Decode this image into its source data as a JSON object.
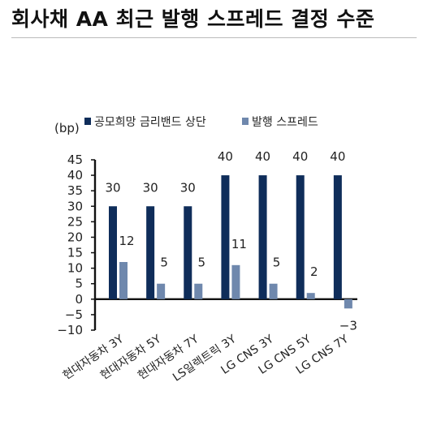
{
  "page": {
    "title": "회사채 AA 최근 발행 스프레드 결정 수준"
  },
  "chart_data": {
    "type": "bar",
    "title": "회사채 AA 최근 발행 스프레드 결정 수준",
    "unit_label": "(bp)",
    "categories": [
      "현대자동차 3Y",
      "현대자동차 5Y",
      "현대자동차 7Y",
      "LS일렉트릭 3Y",
      "LG CNS 3Y",
      "LG CNS 5Y",
      "LG CNS 7Y"
    ],
    "series": [
      {
        "name": "공모희망 금리밴드 상단",
        "color": "#0f2d5a",
        "values": [
          30,
          30,
          30,
          40,
          40,
          40,
          40
        ]
      },
      {
        "name": "발행 스프레드",
        "color": "#6f88ad",
        "values": [
          12,
          5,
          5,
          11,
          5,
          2,
          -3
        ]
      }
    ],
    "ylim": [
      -10,
      45
    ],
    "yticks": [
      -10,
      -5,
      0,
      5,
      10,
      15,
      20,
      25,
      30,
      35,
      40,
      45
    ],
    "legend_position": "top",
    "grid": false,
    "data_labels": true
  }
}
